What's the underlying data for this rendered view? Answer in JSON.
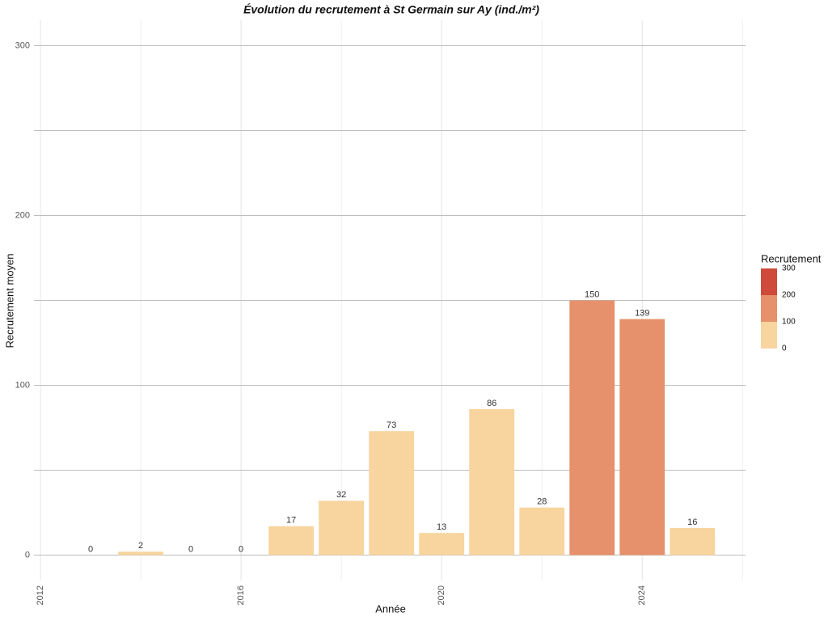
{
  "chart_data": {
    "type": "bar",
    "title": "Évolution du recrutement à St Germain sur Ay (ind./m²)",
    "x_label": "Année",
    "y_label": "Recrutement moyen",
    "x": [
      2013,
      2014,
      2015,
      2016,
      2017,
      2018,
      2019,
      2020,
      2021,
      2022,
      2023,
      2024,
      2025
    ],
    "values": [
      0,
      2,
      0,
      0,
      17,
      32,
      73,
      13,
      86,
      28,
      150,
      139,
      16
    ],
    "xlim": [
      2011.87,
      2026.06
    ],
    "xticks": [
      2012,
      2016,
      2020,
      2024
    ],
    "xminor": [
      2014,
      2018,
      2022,
      2026
    ],
    "ylim": [
      -15,
      315
    ],
    "yticks": [
      0,
      100,
      200,
      300
    ],
    "yminor": [
      50,
      150,
      250
    ],
    "grid": true,
    "legend": {
      "title": "Recrutement",
      "breaks": [
        0,
        100,
        200,
        300
      ],
      "colors": [
        "#f8d49e",
        "#e6916b",
        "#cf4a3a"
      ]
    }
  }
}
